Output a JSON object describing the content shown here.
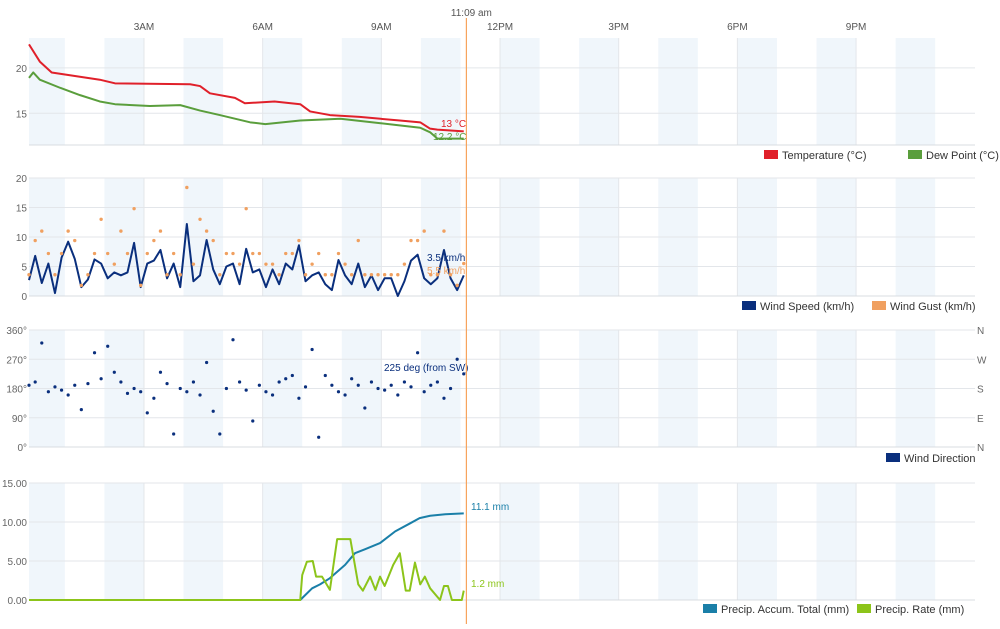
{
  "now_label": "11:09 am",
  "now_time": "11:09",
  "x_axis": {
    "range": [
      "00:00",
      "24:00"
    ],
    "ticks": [
      {
        "time": "03:00",
        "label": "3AM"
      },
      {
        "time": "06:00",
        "label": "6AM"
      },
      {
        "time": "09:00",
        "label": "9AM"
      },
      {
        "time": "12:00",
        "label": "12PM"
      },
      {
        "time": "15:00",
        "label": "3PM"
      },
      {
        "time": "18:00",
        "label": "6PM"
      },
      {
        "time": "21:00",
        "label": "9PM"
      }
    ],
    "shaded_bands": "alternate hours"
  },
  "colors": {
    "temperature": "#e0202a",
    "dew_point": "#5a9e3c",
    "wind_speed": "#0a2f7d",
    "wind_gust": "#f0a060",
    "wind_direction": "#0a2f7d",
    "precip_accum": "#1a7fa8",
    "precip_rate": "#8cc41a",
    "now_line": "#f7a35c",
    "band": "#f0f6fb",
    "grid": "#e3e6ea"
  },
  "chart_data": [
    {
      "type": "line",
      "ylim": [
        11.5,
        23.3
      ],
      "yticks": [
        {
          "v": 15,
          "label": "15"
        },
        {
          "v": 20,
          "label": "20"
        }
      ],
      "legend_placement": "bottom-right",
      "grid": true,
      "series": [
        {
          "name": "Temperature (°C)",
          "color_key": "temperature",
          "end_label": "13 °C",
          "points": [
            [
              "00:05",
              22.6
            ],
            [
              "00:22",
              20.7
            ],
            [
              "00:40",
              19.5
            ],
            [
              "01:53",
              18.7
            ],
            [
              "02:16",
              18.3
            ],
            [
              "04:10",
              18.2
            ],
            [
              "04:25",
              18.0
            ],
            [
              "04:40",
              17.2
            ],
            [
              "05:18",
              16.7
            ],
            [
              "05:33",
              16.1
            ],
            [
              "06:18",
              16.3
            ],
            [
              "06:57",
              16.0
            ],
            [
              "07:12",
              15.2
            ],
            [
              "07:42",
              14.8
            ],
            [
              "08:27",
              14.6
            ],
            [
              "09:28",
              14.2
            ],
            [
              "09:59",
              14.0
            ],
            [
              "10:14",
              13.3
            ],
            [
              "10:25",
              13.2
            ],
            [
              "11:05",
              13.0
            ]
          ]
        },
        {
          "name": "Dew Point (°C)",
          "color_key": "dew_point",
          "end_label": "12.2 °C",
          "points": [
            [
              "00:05",
              18.9
            ],
            [
              "00:12",
              19.5
            ],
            [
              "00:22",
              18.7
            ],
            [
              "00:53",
              17.8
            ],
            [
              "01:23",
              17.0
            ],
            [
              "01:53",
              16.3
            ],
            [
              "02:16",
              16.0
            ],
            [
              "03:09",
              15.8
            ],
            [
              "03:55",
              15.9
            ],
            [
              "04:25",
              15.3
            ],
            [
              "04:55",
              14.8
            ],
            [
              "05:41",
              14.0
            ],
            [
              "06:04",
              13.8
            ],
            [
              "06:57",
              14.2
            ],
            [
              "07:58",
              14.4
            ],
            [
              "08:59",
              13.9
            ],
            [
              "09:59",
              13.4
            ],
            [
              "10:14",
              12.9
            ],
            [
              "10:25",
              12.2
            ],
            [
              "11:05",
              12.2
            ]
          ]
        }
      ]
    },
    {
      "type": "line",
      "ylim": [
        0,
        20
      ],
      "yticks": [
        {
          "v": 0,
          "label": "0"
        },
        {
          "v": 5,
          "label": "5"
        },
        {
          "v": 10,
          "label": "10"
        },
        {
          "v": 15,
          "label": "15"
        },
        {
          "v": 20,
          "label": "20"
        }
      ],
      "legend_placement": "bottom-right",
      "grid": true,
      "times": [
        "00:05",
        "00:15",
        "00:25",
        "00:35",
        "00:45",
        "00:55",
        "01:05",
        "01:15",
        "01:25",
        "01:35",
        "01:45",
        "01:55",
        "02:05",
        "02:15",
        "02:25",
        "02:35",
        "02:45",
        "02:55",
        "03:05",
        "03:15",
        "03:25",
        "03:35",
        "03:45",
        "03:55",
        "04:05",
        "04:15",
        "04:25",
        "04:35",
        "04:45",
        "04:55",
        "05:05",
        "05:15",
        "05:25",
        "05:35",
        "05:45",
        "05:55",
        "06:05",
        "06:15",
        "06:25",
        "06:35",
        "06:45",
        "06:55",
        "07:05",
        "07:15",
        "07:25",
        "07:35",
        "07:45",
        "07:55",
        "08:05",
        "08:15",
        "08:25",
        "08:35",
        "08:45",
        "08:55",
        "09:05",
        "09:15",
        "09:25",
        "09:35",
        "09:45",
        "09:55",
        "10:05",
        "10:15",
        "10:25",
        "10:35",
        "10:45",
        "10:55",
        "11:05"
      ],
      "series": [
        {
          "name": "Wind Speed (km/h)",
          "color_key": "wind_speed",
          "mark": "line",
          "end_label": "3.5 km/h",
          "values": [
            2.7,
            6.8,
            2.2,
            5.5,
            0.5,
            6.5,
            9.2,
            6.3,
            1.5,
            2.8,
            6.2,
            5.5,
            3.0,
            4.0,
            3.5,
            4.0,
            9.0,
            1.5,
            5.5,
            6.0,
            7.8,
            3.0,
            5.5,
            1.5,
            12.2,
            2.5,
            3.5,
            9.5,
            4.5,
            2.0,
            5.0,
            5.5,
            2.0,
            8.0,
            4.0,
            4.5,
            1.5,
            4.5,
            2.0,
            5.5,
            4.5,
            8.6,
            2.5,
            3.5,
            4.0,
            2.0,
            1.0,
            6.1,
            3.5,
            2.0,
            5.5,
            1.5,
            3.5,
            1.0,
            3.0,
            3.0,
            0.0,
            2.5,
            6.0,
            7.0,
            3.0,
            2.0,
            3.0,
            7.8,
            3.0,
            1.0,
            3.5
          ]
        },
        {
          "name": "Wind Gust (km/h)",
          "color_key": "wind_gust",
          "mark": "dots",
          "end_label": "5.5 km/h",
          "values": [
            3.6,
            9.4,
            11,
            7.2,
            3.6,
            7.2,
            11,
            9.4,
            1.8,
            3.6,
            7.2,
            13,
            7.2,
            5.4,
            11,
            7.2,
            14.8,
            1.8,
            7.2,
            9.4,
            11,
            3.6,
            7.2,
            3.6,
            18.4,
            5.4,
            13,
            11,
            9.4,
            3.6,
            7.2,
            7.2,
            5.4,
            14.8,
            7.2,
            7.2,
            5.4,
            5.4,
            3.6,
            7.2,
            7.2,
            9.4,
            3.6,
            5.4,
            7.2,
            3.6,
            3.6,
            7.2,
            5.4,
            3.6,
            9.4,
            3.6,
            3.6,
            3.6,
            3.6,
            3.6,
            3.6,
            5.4,
            9.4,
            9.4,
            11,
            3.6,
            3.6,
            11,
            3.6,
            1.8,
            5.5
          ]
        }
      ]
    },
    {
      "type": "scatter",
      "ylim": [
        0,
        360
      ],
      "yticks": [
        {
          "v": 0,
          "label": "0°"
        },
        {
          "v": 90,
          "label": "90°"
        },
        {
          "v": 180,
          "label": "180°"
        },
        {
          "v": 270,
          "label": "270°"
        },
        {
          "v": 360,
          "label": "360°"
        }
      ],
      "right_ticks": [
        {
          "v": 0,
          "label": "N"
        },
        {
          "v": 90,
          "label": "E"
        },
        {
          "v": 180,
          "label": "S"
        },
        {
          "v": 270,
          "label": "W"
        },
        {
          "v": 360,
          "label": "N"
        }
      ],
      "legend_placement": "bottom-right",
      "grid": true,
      "series": [
        {
          "name": "Wind Direction",
          "color_key": "wind_direction",
          "end_label": "225 deg (from SW)",
          "values": [
            190,
            200,
            320,
            170,
            185,
            175,
            160,
            190,
            115,
            195,
            290,
            210,
            310,
            230,
            200,
            165,
            180,
            170,
            105,
            150,
            230,
            195,
            40,
            180,
            170,
            200,
            160,
            260,
            110,
            40,
            180,
            330,
            200,
            175,
            80,
            190,
            170,
            160,
            200,
            210,
            220,
            150,
            185,
            300,
            30,
            220,
            190,
            170,
            160,
            210,
            190,
            120,
            200,
            180,
            175,
            190,
            160,
            200,
            185,
            290,
            170,
            190,
            200,
            150,
            180,
            270,
            225
          ]
        }
      ]
    },
    {
      "type": "line",
      "ylim": [
        0,
        15
      ],
      "yticks": [
        {
          "v": 0,
          "label": "0.00"
        },
        {
          "v": 5,
          "label": "5.00"
        },
        {
          "v": 10,
          "label": "10.00"
        },
        {
          "v": 15,
          "label": "15.00"
        }
      ],
      "legend_placement": "bottom-right",
      "grid": true,
      "series": [
        {
          "name": "Precip. Accum. Total (mm)",
          "color_key": "precip_accum",
          "end_label": "11.1 mm",
          "points": [
            [
              "00:05",
              0
            ],
            [
              "06:57",
              0
            ],
            [
              "07:15",
              1.5
            ],
            [
              "07:27",
              2.0
            ],
            [
              "07:42",
              2.8
            ],
            [
              "08:05",
              4.5
            ],
            [
              "08:20",
              6.0
            ],
            [
              "08:35",
              6.5
            ],
            [
              "08:58",
              7.3
            ],
            [
              "09:21",
              8.8
            ],
            [
              "09:43",
              9.8
            ],
            [
              "09:58",
              10.5
            ],
            [
              "10:14",
              10.8
            ],
            [
              "10:37",
              11.0
            ],
            [
              "11:05",
              11.1
            ]
          ]
        },
        {
          "name": "Precip. Rate (mm)",
          "color_key": "precip_rate",
          "end_label": "1.2 mm",
          "points": [
            [
              "00:05",
              0
            ],
            [
              "06:57",
              0
            ],
            [
              "07:00",
              3.2
            ],
            [
              "07:07",
              4.9
            ],
            [
              "07:16",
              5.0
            ],
            [
              "07:21",
              3.0
            ],
            [
              "07:30",
              3.0
            ],
            [
              "07:42",
              1.3
            ],
            [
              "07:53",
              7.8
            ],
            [
              "08:13",
              7.8
            ],
            [
              "08:25",
              2.0
            ],
            [
              "08:32",
              1.2
            ],
            [
              "08:43",
              3.0
            ],
            [
              "08:51",
              1.3
            ],
            [
              "08:58",
              3.0
            ],
            [
              "09:05",
              1.8
            ],
            [
              "09:18",
              4.5
            ],
            [
              "09:28",
              6.0
            ],
            [
              "09:37",
              1.2
            ],
            [
              "09:43",
              1.2
            ],
            [
              "09:51",
              4.8
            ],
            [
              "09:59",
              2.0
            ],
            [
              "10:06",
              3.0
            ],
            [
              "10:14",
              1.5
            ],
            [
              "10:29",
              0
            ],
            [
              "10:35",
              1.8
            ],
            [
              "10:41",
              1.8
            ],
            [
              "10:47",
              0
            ],
            [
              "11:02",
              0
            ],
            [
              "11:05",
              1.2
            ]
          ]
        }
      ]
    }
  ]
}
